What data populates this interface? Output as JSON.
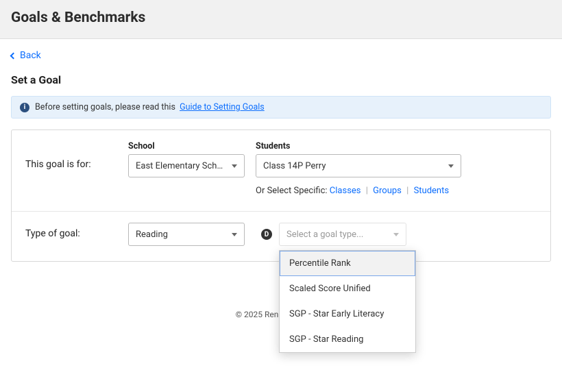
{
  "header": {
    "title": "Goals & Benchmarks"
  },
  "nav": {
    "back": "Back"
  },
  "page": {
    "subtitle": "Set a Goal"
  },
  "banner": {
    "text": "Before setting goals, please read this",
    "link": "Guide to Setting Goals"
  },
  "goal_for": {
    "label": "This goal is for:",
    "school_label": "School",
    "school_value": "East Elementary Sch…",
    "students_label": "Students",
    "students_value": "Class 14P Perry",
    "or_select": "Or Select Specific:",
    "link_classes": "Classes",
    "link_groups": "Groups",
    "link_students": "Students"
  },
  "goal_type": {
    "label": "Type of goal:",
    "subject_value": "Reading",
    "marker": "D",
    "placeholder": "Select a goal type...",
    "options": [
      "Percentile Rank",
      "Scaled Score Unified",
      "SGP - Star Early Literacy",
      "SGP - Star Reading"
    ]
  },
  "footer": {
    "text": "© 2025 Renissance Lea…"
  },
  "footer_full": "© 2025 Renaissance Lea"
}
